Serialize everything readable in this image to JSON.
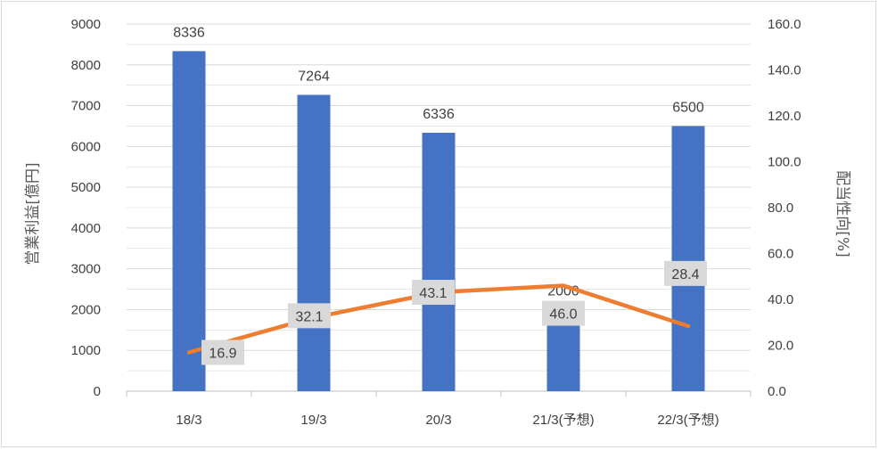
{
  "chart_data": {
    "type": "bar",
    "categories": [
      "18/3",
      "19/3",
      "20/3",
      "21/3(予想)",
      "22/3(予想)"
    ],
    "series": [
      {
        "type": "bar",
        "axis": "left",
        "values": [
          8336,
          7264,
          6336,
          2000,
          6500
        ],
        "color": "#4472c4"
      },
      {
        "type": "line",
        "axis": "right",
        "values": [
          16.9,
          32.1,
          43.1,
          46.0,
          28.4
        ],
        "labels": [
          "16.9",
          "32.1",
          "43.1",
          "46.0",
          "28.4"
        ],
        "color": "#ed7d31"
      }
    ],
    "ylabel": "営業利益[億円]",
    "y2label": "配当性向[%]",
    "ylim": [
      0,
      9000
    ],
    "y2lim": [
      0,
      160
    ],
    "yticks": [
      "0",
      "1000",
      "2000",
      "3000",
      "4000",
      "5000",
      "6000",
      "7000",
      "8000",
      "9000"
    ],
    "y2ticks": [
      "0.0",
      "20.0",
      "40.0",
      "60.0",
      "80.0",
      "100.0",
      "120.0",
      "140.0",
      "160.0"
    ],
    "grid": true,
    "legend": "none",
    "colors": {
      "gridline": "#d9d9d9",
      "label_box": "#d9d9d9"
    }
  }
}
